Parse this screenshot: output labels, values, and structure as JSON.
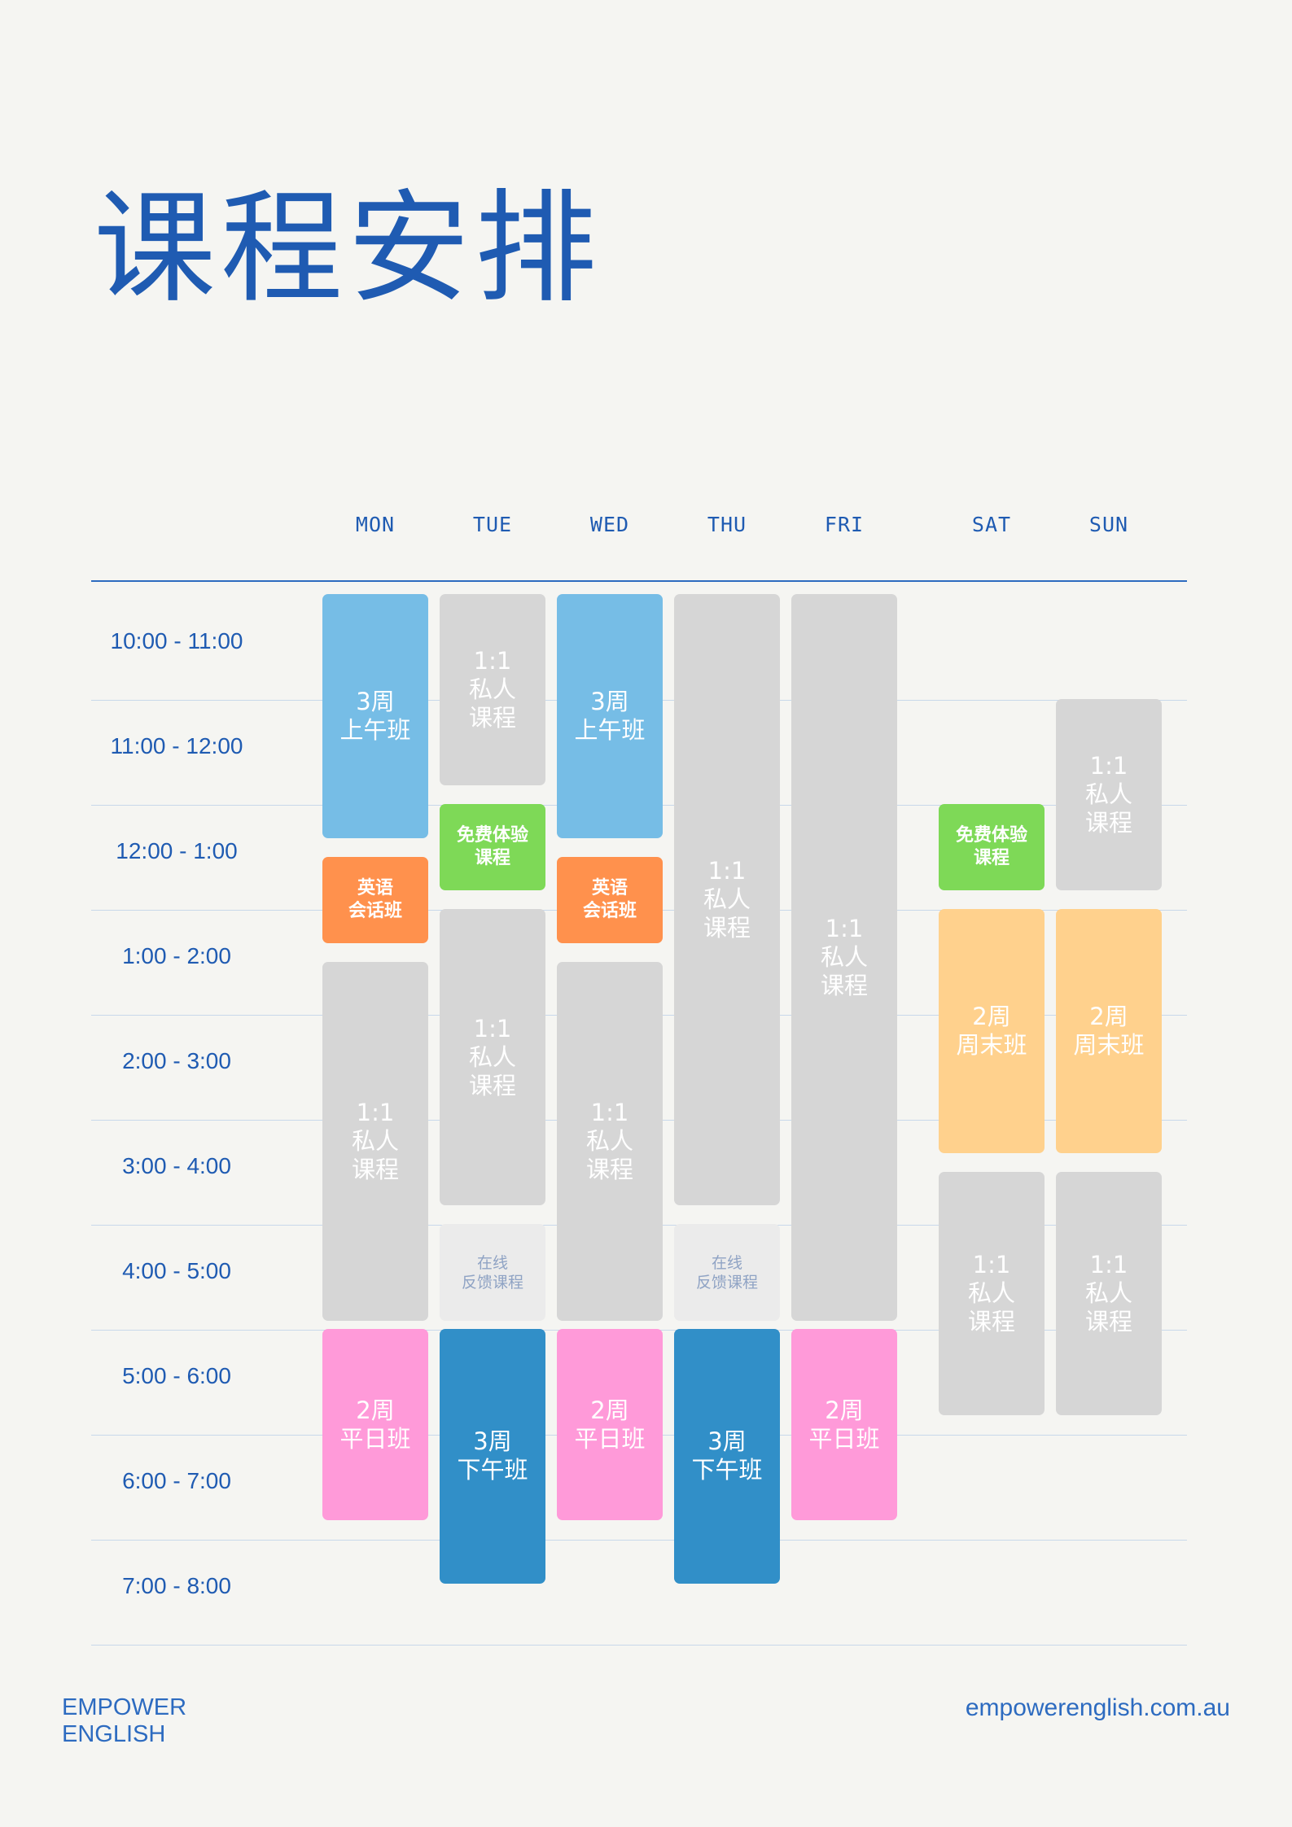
{
  "title": "课程安排",
  "days": [
    "MON",
    "TUE",
    "WED",
    "THU",
    "FRI",
    "SAT",
    "SUN"
  ],
  "times": [
    "10:00 - 11:00",
    "11:00 - 12:00",
    "12:00 - 1:00",
    "1:00 - 2:00",
    "2:00 - 3:00",
    "3:00 - 4:00",
    "4:00 - 5:00",
    "5:00 - 6:00",
    "6:00 - 7:00",
    "7:00 - 8:00"
  ],
  "colors": {
    "lblue": "#76bde6",
    "gray": "#d6d6d6",
    "green": "#7ed957",
    "orange": "#ff914d",
    "pink": "#ff9ad9",
    "dblue": "#318fc8",
    "peach": "#ffd18d",
    "light": "#ebebeb",
    "accent": "#1f5bb2"
  },
  "sessions": [
    {
      "day": "MON",
      "start": 10.0,
      "end": 12.4,
      "label": "3周\n上午班",
      "color": "lblue",
      "size": "lg"
    },
    {
      "day": "MON",
      "start": 12.5,
      "end": 13.4,
      "label": "英语\n会话班",
      "color": "orange",
      "size": "md"
    },
    {
      "day": "MON",
      "start": 13.5,
      "end": 17.0,
      "label": "1:1\n私人\n课程",
      "color": "gray",
      "size": "lg"
    },
    {
      "day": "MON",
      "start": 17.0,
      "end": 18.9,
      "label": "2周\n平日班",
      "color": "pink",
      "size": "lg"
    },
    {
      "day": "TUE",
      "start": 10.0,
      "end": 11.9,
      "label": "1:1\n私人\n课程",
      "color": "gray",
      "size": "lg"
    },
    {
      "day": "TUE",
      "start": 12.0,
      "end": 12.9,
      "label": "免费体验\n课程",
      "color": "green",
      "size": "md"
    },
    {
      "day": "TUE",
      "start": 13.0,
      "end": 15.9,
      "label": "1:1\n私人\n课程",
      "color": "gray",
      "size": "lg"
    },
    {
      "day": "TUE",
      "start": 16.0,
      "end": 17.0,
      "label": "在线\n反馈课程",
      "color": "light",
      "size": "sm"
    },
    {
      "day": "TUE",
      "start": 17.0,
      "end": 19.5,
      "label": "3周\n下午班",
      "color": "dblue",
      "size": "lg"
    },
    {
      "day": "WED",
      "start": 10.0,
      "end": 12.4,
      "label": "3周\n上午班",
      "color": "lblue",
      "size": "lg"
    },
    {
      "day": "WED",
      "start": 12.5,
      "end": 13.4,
      "label": "英语\n会话班",
      "color": "orange",
      "size": "md"
    },
    {
      "day": "WED",
      "start": 13.5,
      "end": 17.0,
      "label": "1:1\n私人\n课程",
      "color": "gray",
      "size": "lg"
    },
    {
      "day": "WED",
      "start": 17.0,
      "end": 18.9,
      "label": "2周\n平日班",
      "color": "pink",
      "size": "lg"
    },
    {
      "day": "THU",
      "start": 10.0,
      "end": 15.9,
      "label": "1:1\n私人\n课程",
      "color": "gray",
      "size": "lg"
    },
    {
      "day": "THU",
      "start": 16.0,
      "end": 17.0,
      "label": "在线\n反馈课程",
      "color": "light",
      "size": "sm"
    },
    {
      "day": "THU",
      "start": 17.0,
      "end": 19.5,
      "label": "3周\n下午班",
      "color": "dblue",
      "size": "lg"
    },
    {
      "day": "FRI",
      "start": 10.0,
      "end": 17.0,
      "label": "1:1\n私人\n课程",
      "color": "gray",
      "size": "lg"
    },
    {
      "day": "FRI",
      "start": 17.0,
      "end": 18.9,
      "label": "2周\n平日班",
      "color": "pink",
      "size": "lg"
    },
    {
      "day": "SAT",
      "start": 12.0,
      "end": 12.9,
      "label": "免费体验\n课程",
      "color": "green",
      "size": "md"
    },
    {
      "day": "SAT",
      "start": 13.0,
      "end": 15.4,
      "label": "2周\n周末班",
      "color": "peach",
      "size": "lg"
    },
    {
      "day": "SAT",
      "start": 15.5,
      "end": 17.9,
      "label": "1:1\n私人\n课程",
      "color": "gray",
      "size": "lg"
    },
    {
      "day": "SUN",
      "start": 11.0,
      "end": 12.9,
      "label": "1:1\n私人\n课程",
      "color": "gray",
      "size": "lg"
    },
    {
      "day": "SUN",
      "start": 13.0,
      "end": 15.4,
      "label": "2周\n周末班",
      "color": "peach",
      "size": "lg"
    },
    {
      "day": "SUN",
      "start": 15.5,
      "end": 17.9,
      "label": "1:1\n私人\n课程",
      "color": "gray",
      "size": "lg"
    }
  ],
  "footer": {
    "brand_line1": "EMPOWER",
    "brand_line2": "ENGLISH",
    "url": "empowerenglish.com.au"
  }
}
